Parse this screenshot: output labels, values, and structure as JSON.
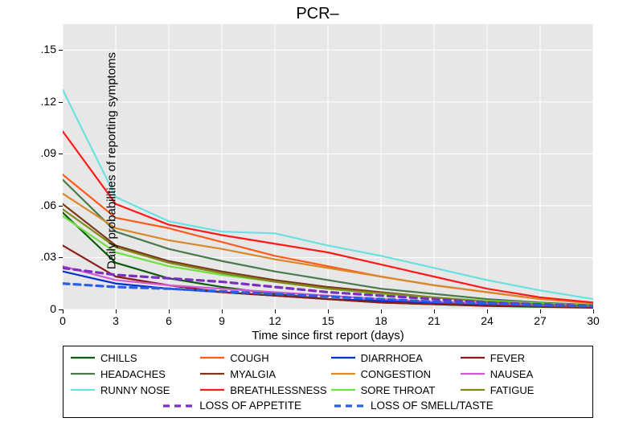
{
  "title": "PCR–",
  "yaxis": {
    "label": "Daily probabilities of reporting symptoms",
    "min": 0,
    "max": 0.165,
    "ticks": [
      0,
      0.03,
      0.06,
      0.09,
      0.12,
      0.15
    ],
    "tick_labels": [
      "0",
      ".03",
      ".06",
      ".09",
      ".12",
      ".15"
    ]
  },
  "xaxis": {
    "label": "Time since first report (days)",
    "min": 0,
    "max": 30,
    "ticks": [
      0,
      3,
      6,
      9,
      12,
      15,
      18,
      21,
      24,
      27,
      30
    ]
  },
  "plot": {
    "background": "#e7e7e7",
    "gridline_color": "#ffffff",
    "gridline_width": 1
  },
  "x_values": [
    0,
    3,
    6,
    9,
    12,
    15,
    18,
    21,
    24,
    27,
    30
  ],
  "series": [
    {
      "name": "CHILLS",
      "color": "#0a5c0a",
      "width": 2.2,
      "dash": "",
      "y": [
        0.056,
        0.027,
        0.018,
        0.013,
        0.009,
        0.006,
        0.004,
        0.003,
        0.002,
        0.0015,
        0.001
      ]
    },
    {
      "name": "COUGH",
      "color": "#ff5a1a",
      "width": 2.2,
      "dash": "",
      "y": [
        0.078,
        0.053,
        0.047,
        0.039,
        0.031,
        0.025,
        0.019,
        0.014,
        0.01,
        0.006,
        0.004
      ]
    },
    {
      "name": "DIARRHOEA",
      "color": "#0030d0",
      "width": 2.2,
      "dash": "",
      "y": [
        0.022,
        0.015,
        0.012,
        0.01,
        0.008,
        0.006,
        0.005,
        0.004,
        0.003,
        0.0022,
        0.0015
      ]
    },
    {
      "name": "FEVER",
      "color": "#8a1a1a",
      "width": 2.2,
      "dash": "",
      "y": [
        0.037,
        0.019,
        0.014,
        0.01,
        0.008,
        0.006,
        0.004,
        0.003,
        0.0022,
        0.0018,
        0.0012
      ]
    },
    {
      "name": "HEADACHES",
      "color": "#4a7a4a",
      "width": 2.2,
      "dash": "",
      "y": [
        0.075,
        0.045,
        0.035,
        0.028,
        0.022,
        0.017,
        0.012,
        0.009,
        0.006,
        0.004,
        0.0025
      ]
    },
    {
      "name": "MYALGIA",
      "color": "#7a3a1a",
      "width": 2.2,
      "dash": "",
      "y": [
        0.061,
        0.037,
        0.028,
        0.022,
        0.017,
        0.013,
        0.01,
        0.007,
        0.0045,
        0.003,
        0.002
      ]
    },
    {
      "name": "CONGESTION",
      "color": "#d9882a",
      "width": 2.2,
      "dash": "",
      "y": [
        0.067,
        0.047,
        0.04,
        0.035,
        0.029,
        0.024,
        0.019,
        0.014,
        0.01,
        0.006,
        0.0035
      ]
    },
    {
      "name": "NAUSEA",
      "color": "#d458d4",
      "width": 2.2,
      "dash": "",
      "y": [
        0.025,
        0.017,
        0.014,
        0.012,
        0.01,
        0.008,
        0.006,
        0.0045,
        0.0035,
        0.0025,
        0.0018
      ]
    },
    {
      "name": "RUNNY NOSE",
      "color": "#6be0e0",
      "width": 2.2,
      "dash": "",
      "y": [
        0.127,
        0.065,
        0.051,
        0.045,
        0.044,
        0.037,
        0.031,
        0.024,
        0.017,
        0.011,
        0.006
      ]
    },
    {
      "name": "BREATHLESSNESS",
      "color": "#ff1a1a",
      "width": 2.2,
      "dash": "",
      "y": [
        0.103,
        0.061,
        0.049,
        0.043,
        0.038,
        0.033,
        0.026,
        0.019,
        0.012,
        0.007,
        0.004
      ]
    },
    {
      "name": "SORE THROAT",
      "color": "#6ee040",
      "width": 2.2,
      "dash": "",
      "y": [
        0.054,
        0.033,
        0.025,
        0.02,
        0.016,
        0.012,
        0.009,
        0.007,
        0.005,
        0.0035,
        0.0022
      ]
    },
    {
      "name": "FATIGUE",
      "color": "#808a1a",
      "width": 2.2,
      "dash": "",
      "y": [
        0.058,
        0.036,
        0.027,
        0.021,
        0.016,
        0.012,
        0.0095,
        0.007,
        0.0045,
        0.003,
        0.002
      ]
    },
    {
      "name": "LOSS OF APPETITE",
      "color": "#7a2fbf",
      "width": 3.2,
      "dash": "8 6",
      "y": [
        0.024,
        0.02,
        0.018,
        0.016,
        0.013,
        0.01,
        0.008,
        0.006,
        0.004,
        0.003,
        0.002
      ]
    },
    {
      "name": "LOSS OF SMELL/TASTE",
      "color": "#2a5fe0",
      "width": 3.2,
      "dash": "8 6",
      "y": [
        0.015,
        0.013,
        0.012,
        0.0105,
        0.009,
        0.0075,
        0.006,
        0.0045,
        0.0035,
        0.0025,
        0.0018
      ]
    }
  ],
  "legend_layout": {
    "rows_top": [
      [
        "CHILLS",
        "COUGH",
        "DIARRHOEA",
        "FEVER"
      ],
      [
        "HEADACHES",
        "MYALGIA",
        "CONGESTION",
        "NAUSEA"
      ],
      [
        "RUNNY NOSE",
        "BREATHLESSNESS",
        "SORE THROAT",
        "FATIGUE"
      ]
    ],
    "row_bottom": [
      "LOSS OF APPETITE",
      "LOSS OF SMELL/TASTE"
    ]
  }
}
